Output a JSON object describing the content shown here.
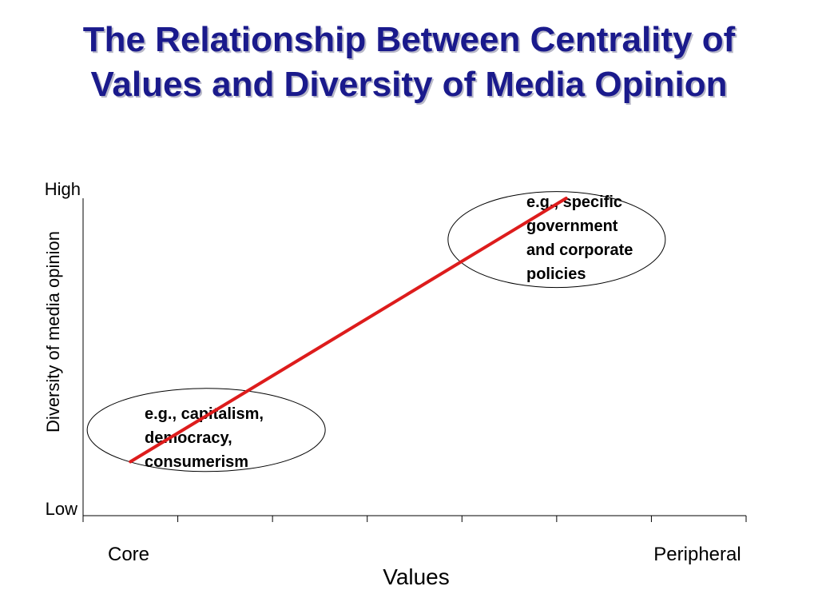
{
  "title": {
    "line1": "The Relationship Between Centrality of",
    "line2": "Values and Diversity of Media Opinion"
  },
  "colors": {
    "title": "#1a1a8c",
    "trend_line": "#dd1c1c",
    "axis": "#000000"
  },
  "chart_data": {
    "type": "line",
    "xlabel": "Values",
    "ylabel": "Diversity of media opinion",
    "x_tick_labels": {
      "low": "Core",
      "high": "Peripheral"
    },
    "y_tick_labels": {
      "low": "Low",
      "high": "High"
    },
    "xlim": [
      0,
      7
    ],
    "ylim": [
      0,
      1
    ],
    "x_minor_ticks": 7,
    "grid": false,
    "series": [
      {
        "x": [
          0.5,
          5.1
        ],
        "y": [
          0.17,
          1.0
        ]
      }
    ],
    "annotations": [
      {
        "lines": [
          "e.g., capitalism,",
          "democracy,",
          "consumerism"
        ],
        "center": [
          1.3,
          0.27
        ],
        "ellipse": true
      },
      {
        "lines": [
          "e.g., specific",
          "government",
          "and corporate",
          "policies"
        ],
        "center": [
          5.0,
          0.87
        ],
        "ellipse": true
      }
    ]
  }
}
